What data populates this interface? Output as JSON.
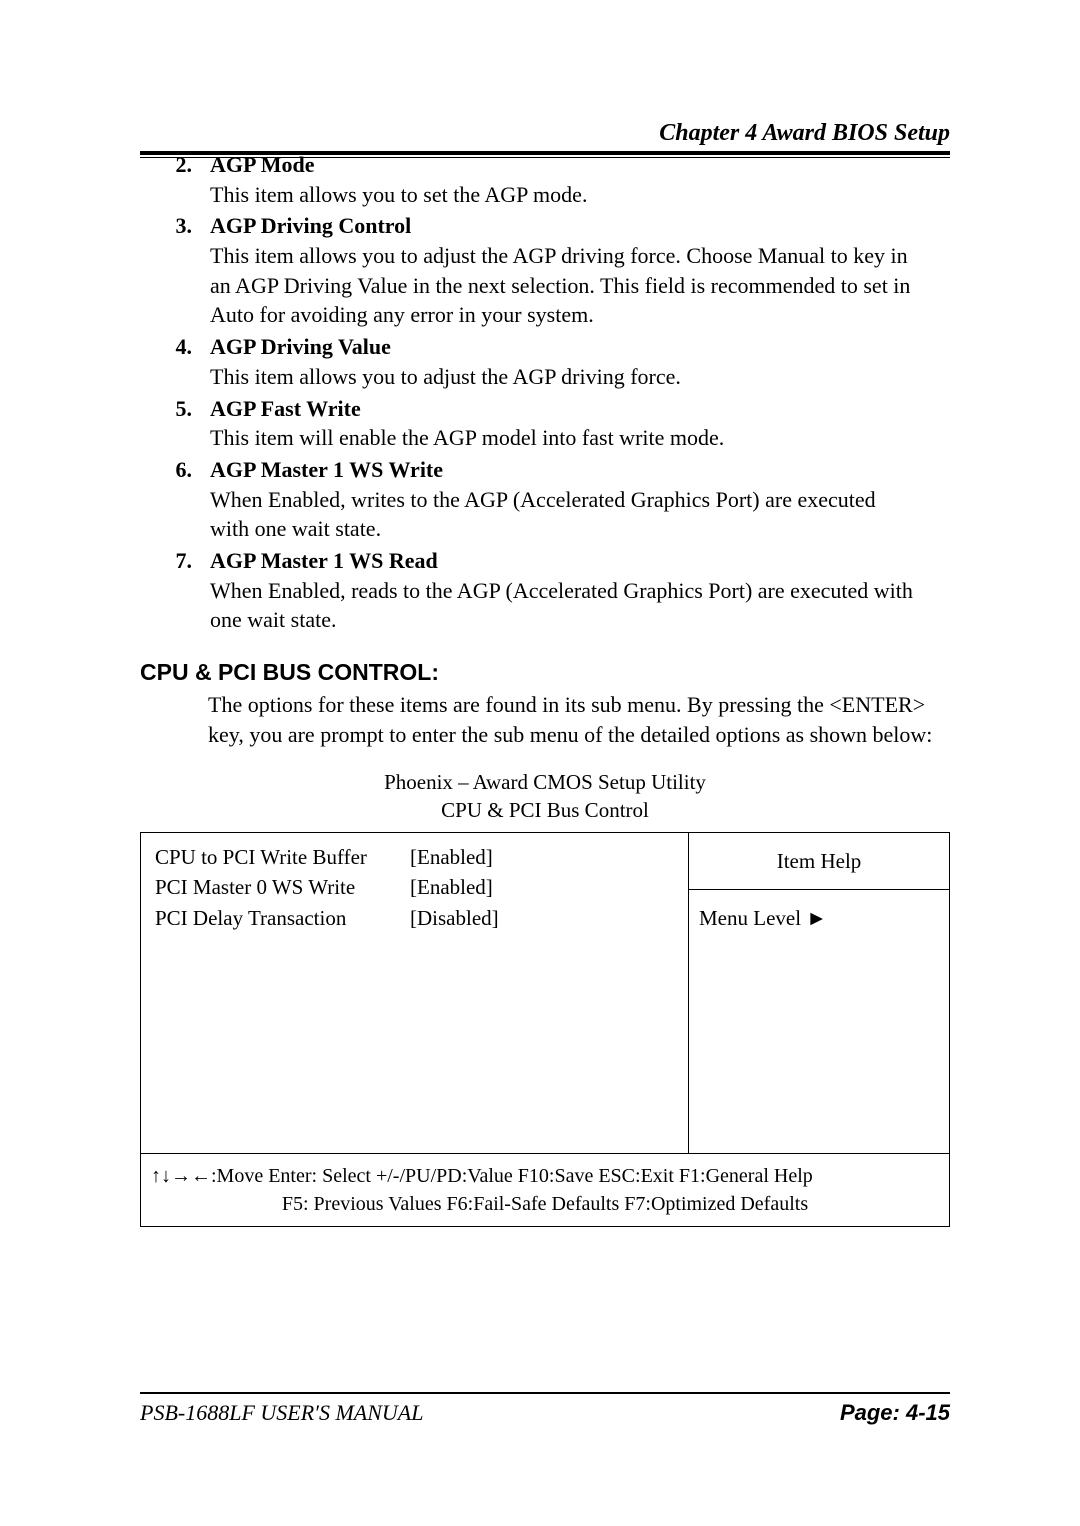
{
  "header": {
    "chapter": "Chapter  4  Award BIOS Setup"
  },
  "items": [
    {
      "num": "2.",
      "title": "AGP Mode",
      "desc": "This item allows you to set the AGP mode."
    },
    {
      "num": "3.",
      "title": "AGP Driving Control",
      "desc": "This item allows you to adjust the AGP driving force.   Choose Manual to key in an AGP Driving Value in the next selection.   This field is recommended to set in Auto for avoiding any error in your system."
    },
    {
      "num": "4.",
      "title": "AGP Driving Value",
      "desc": "This item allows you to adjust the AGP driving force."
    },
    {
      "num": "5.",
      "title": "AGP Fast Write",
      "desc": "This item will enable the AGP model into fast write mode."
    },
    {
      "num": "6.",
      "title": "AGP Master 1 WS Write",
      "desc": "When Enabled, writes to the AGP (Accelerated Graphics Port) are executed with one wait state."
    },
    {
      "num": "7.",
      "title": "AGP Master 1 WS Read",
      "desc": "When Enabled, reads to the AGP (Accelerated Graphics Port) are executed with one wait state."
    }
  ],
  "section": {
    "title": "CPU & PCI BUS CONTROL:",
    "desc": "The options for these items are found in its sub menu. By pressing the <ENTER> key, you are prompt to enter the sub menu of the detailed options as shown below:"
  },
  "bios": {
    "title1": "Phoenix – Award CMOS Setup Utility",
    "title2": "CPU & PCI Bus Control",
    "rows": [
      {
        "label": "CPU to PCI Write Buffer",
        "value": "[Enabled]"
      },
      {
        "label": "PCI Master 0 WS Write",
        "value": "[Enabled]"
      },
      {
        "label": "PCI Delay Transaction",
        "value": "[Disabled]"
      }
    ],
    "help_title": "Item Help",
    "menu_level": "Menu Level  ►",
    "footer1": "↑↓→←:Move  Enter: Select  +/-/PU/PD:Value  F10:Save  ESC:Exit  F1:General Help",
    "footer2": "F5: Previous Values     F6:Fail-Safe Defaults    F7:Optimized Defaults"
  },
  "footer": {
    "left": "PSB-1688LF USER′S MANUAL",
    "right": "Page: 4-15"
  }
}
